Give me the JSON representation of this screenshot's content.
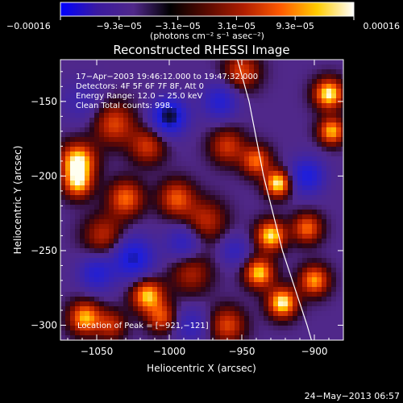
{
  "chart_data": {
    "type": "heatmap",
    "title": "Reconstructed RHESSI Image",
    "xlabel": "Heliocentric X (arcsec)",
    "ylabel": "Heliocentric Y (arcsec)",
    "xlim": [
      -1075,
      -880
    ],
    "ylim": [
      -310,
      -122
    ],
    "x_ticks": [
      {
        "value": -1050,
        "label": "−1050"
      },
      {
        "value": -1000,
        "label": "−1000"
      },
      {
        "value": -950,
        "label": "−950"
      },
      {
        "value": -900,
        "label": "−900"
      }
    ],
    "y_ticks": [
      {
        "value": -150,
        "label": "−150"
      },
      {
        "value": -200,
        "label": "−200"
      },
      {
        "value": -250,
        "label": "−250"
      },
      {
        "value": -300,
        "label": "−300"
      }
    ],
    "colorbar": {
      "min": -0.00016,
      "max": 0.00016,
      "tick_labels": [
        "−0.00016",
        "−9.3e−05",
        "−3.1e−05",
        "3.1e−05",
        "9.3e−05",
        "0.00016"
      ],
      "unit": "(photons cm⁻² s⁻¹ asec⁻²)",
      "colors": [
        "#0000ff",
        "#3a1aa0",
        "#50288a",
        "#000000",
        "#5a0a00",
        "#b01e00",
        "#ff5a00",
        "#ffcc00",
        "#ffffff"
      ]
    },
    "annotations": [
      "17−Apr−2003 19:46:12.000 to 19:47:32.000",
      "Detectors: 4F 5F 6F 7F 8F, Att 0",
      "Energy Range: 12.0 − 25.0 keV",
      "Clean    Total counts: 998."
    ],
    "peak_label": "Location of Peak = [−921,−121]",
    "limb_curve": [
      [
        -953,
        -122
      ],
      [
        -945,
        -150
      ],
      [
        -935,
        -200
      ],
      [
        -922,
        -250
      ],
      [
        -905,
        -300
      ],
      [
        -902,
        -310
      ]
    ],
    "blobs": [
      {
        "x": -1063,
        "y": -190,
        "v": 1.0,
        "r": 12
      },
      {
        "x": -1063,
        "y": -205,
        "v": 0.8,
        "r": 10
      },
      {
        "x": -1038,
        "y": -165,
        "v": 0.6,
        "r": 14
      },
      {
        "x": -1030,
        "y": -215,
        "v": 0.7,
        "r": 12
      },
      {
        "x": -1045,
        "y": -240,
        "v": 0.5,
        "r": 14
      },
      {
        "x": -1015,
        "y": -180,
        "v": 0.55,
        "r": 12
      },
      {
        "x": -995,
        "y": -215,
        "v": 0.65,
        "r": 12
      },
      {
        "x": -975,
        "y": -230,
        "v": 0.5,
        "r": 14
      },
      {
        "x": -960,
        "y": -180,
        "v": 0.55,
        "r": 12
      },
      {
        "x": -985,
        "y": -265,
        "v": 0.45,
        "r": 14
      },
      {
        "x": -1015,
        "y": -280,
        "v": 0.9,
        "r": 11
      },
      {
        "x": -1005,
        "y": -295,
        "v": 0.6,
        "r": 10
      },
      {
        "x": -1058,
        "y": -295,
        "v": 0.85,
        "r": 11
      },
      {
        "x": -1040,
        "y": -300,
        "v": 0.5,
        "r": 10
      },
      {
        "x": -950,
        "y": -130,
        "v": 0.6,
        "r": 12
      },
      {
        "x": -940,
        "y": -190,
        "v": 0.7,
        "r": 10
      },
      {
        "x": -925,
        "y": -205,
        "v": 1.0,
        "r": 9
      },
      {
        "x": -930,
        "y": -240,
        "v": 0.95,
        "r": 10
      },
      {
        "x": -938,
        "y": -265,
        "v": 0.9,
        "r": 10
      },
      {
        "x": -922,
        "y": -285,
        "v": 1.0,
        "r": 10
      },
      {
        "x": -905,
        "y": -235,
        "v": 0.7,
        "r": 10
      },
      {
        "x": -890,
        "y": -145,
        "v": 1.0,
        "r": 10
      },
      {
        "x": -888,
        "y": -170,
        "v": 0.85,
        "r": 9
      },
      {
        "x": -900,
        "y": -270,
        "v": 0.8,
        "r": 10
      },
      {
        "x": -960,
        "y": -300,
        "v": 0.6,
        "r": 12
      },
      {
        "x": -1060,
        "y": -150,
        "v": -0.3,
        "r": 14
      },
      {
        "x": -1000,
        "y": -160,
        "v": -1.0,
        "r": 12
      },
      {
        "x": -1025,
        "y": -255,
        "v": -0.8,
        "r": 14
      },
      {
        "x": -1050,
        "y": -265,
        "v": -0.6,
        "r": 12
      },
      {
        "x": -990,
        "y": -245,
        "v": -0.5,
        "r": 12
      },
      {
        "x": -965,
        "y": -150,
        "v": -0.6,
        "r": 12
      },
      {
        "x": -905,
        "y": -200,
        "v": -0.7,
        "r": 12
      },
      {
        "x": -985,
        "y": -300,
        "v": -0.4,
        "r": 12
      },
      {
        "x": -955,
        "y": -250,
        "v": -0.4,
        "r": 10
      }
    ]
  },
  "timestamp": "24−May−2013 06:57"
}
